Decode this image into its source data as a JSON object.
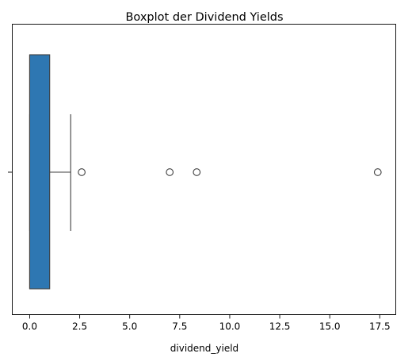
{
  "chart_data": {
    "type": "boxplot",
    "orientation": "horizontal",
    "title": "Boxplot der Dividend Yields",
    "xlabel": "dividend_yield",
    "ylabel": "",
    "xlim": [
      -0.87,
      18.3
    ],
    "x_ticks": [
      0.0,
      2.5,
      5.0,
      7.5,
      10.0,
      12.5,
      15.0,
      17.5
    ],
    "x_tick_labels": [
      "0.0",
      "2.5",
      "5.0",
      "7.5",
      "10.0",
      "12.5",
      "15.0",
      "17.5"
    ],
    "grid": false,
    "series": [
      {
        "min": 0.0,
        "q1": 0.0,
        "median": 0.0,
        "q3": 1.0,
        "whisker_low": 0.0,
        "whisker_high": 2.05,
        "outliers": [
          2.6,
          7.0,
          8.35,
          17.4
        ],
        "color": "#2e77b2"
      }
    ]
  }
}
